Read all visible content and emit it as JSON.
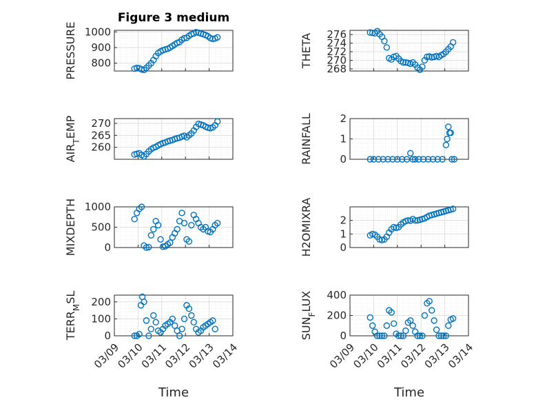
{
  "title": "Figure 3 medium",
  "xlabel": "Time",
  "x_tick_labels": [
    "03/09",
    "03/10",
    "03/11",
    "03/12",
    "03/13",
    "03/14"
  ],
  "marker_color": "#0072bd",
  "chart_data": [
    {
      "type": "scatter",
      "ylabel": "PRESSURE",
      "ylim": [
        750,
        1010
      ],
      "yticks": [
        800,
        900,
        1000
      ],
      "grid": true,
      "x": [
        0.85,
        0.95,
        1.05,
        1.15,
        1.25,
        1.35,
        1.45,
        1.55,
        1.65,
        1.75,
        1.85,
        1.95,
        2.05,
        2.15,
        2.25,
        2.35,
        2.45,
        2.55,
        2.65,
        2.75,
        2.85,
        2.95,
        3.05,
        3.15,
        3.25,
        3.35,
        3.45,
        3.55,
        3.65,
        3.75,
        3.85,
        3.95,
        4.05,
        4.15,
        4.25,
        4.35
      ],
      "y": [
        765,
        770,
        768,
        760,
        757,
        770,
        785,
        800,
        820,
        845,
        865,
        875,
        883,
        888,
        892,
        900,
        910,
        920,
        930,
        935,
        950,
        960,
        962,
        975,
        985,
        990,
        998,
        995,
        990,
        985,
        980,
        972,
        960,
        955,
        958,
        965
      ]
    },
    {
      "type": "scatter",
      "ylabel": "THETA",
      "ylim": [
        267.5,
        277
      ],
      "yticks": [
        268,
        270,
        272,
        274,
        276
      ],
      "grid": true,
      "x": [
        0.85,
        0.95,
        1.05,
        1.15,
        1.25,
        1.35,
        1.45,
        1.55,
        1.65,
        1.75,
        1.85,
        1.95,
        2.05,
        2.15,
        2.25,
        2.35,
        2.45,
        2.55,
        2.65,
        2.75,
        2.85,
        2.95,
        3.05,
        3.15,
        3.25,
        3.35,
        3.45,
        3.55,
        3.65,
        3.75,
        3.85,
        3.95,
        4.05,
        4.15,
        4.25,
        4.35
      ],
      "y": [
        276.5,
        276.4,
        276.3,
        276.8,
        276.1,
        275.5,
        274.5,
        273,
        270.5,
        270.2,
        270.8,
        271,
        270.4,
        269.8,
        269.5,
        269.5,
        269.4,
        269.2,
        269.5,
        269,
        268.3,
        267.8,
        268.5,
        270,
        270.8,
        270.9,
        270.7,
        270.8,
        271,
        270.8,
        271.2,
        271.5,
        272,
        272.6,
        273.2,
        274.2
      ]
    },
    {
      "type": "scatter",
      "ylabel": "AIR_TEMP",
      "ylim": [
        255,
        272
      ],
      "yticks": [
        260,
        265,
        270
      ],
      "grid": true,
      "x": [
        0.85,
        0.95,
        1.05,
        1.15,
        1.25,
        1.35,
        1.45,
        1.55,
        1.65,
        1.75,
        1.85,
        1.95,
        2.05,
        2.15,
        2.25,
        2.35,
        2.45,
        2.55,
        2.65,
        2.75,
        2.85,
        2.95,
        3.05,
        3.15,
        3.25,
        3.35,
        3.45,
        3.55,
        3.65,
        3.75,
        3.85,
        3.95,
        4.05,
        4.15,
        4.25,
        4.35
      ],
      "y": [
        257,
        257.3,
        257.5,
        256.8,
        256.2,
        257.2,
        258.3,
        259.2,
        259.8,
        260.2,
        260.8,
        261.3,
        261.8,
        262,
        262.5,
        262.8,
        263,
        263.5,
        263.8,
        264,
        264.5,
        264.8,
        264.2,
        265,
        265.8,
        267,
        268.5,
        269.8,
        269.5,
        269.2,
        268.6,
        268.2,
        268,
        268.3,
        269.2,
        270.8
      ]
    },
    {
      "type": "scatter",
      "ylabel": "RAINFALL",
      "ylim": [
        0,
        2
      ],
      "yticks": [
        0,
        1,
        2
      ],
      "grid": true,
      "x": [
        0.85,
        1.0,
        1.2,
        1.4,
        1.6,
        1.8,
        2.0,
        2.2,
        2.4,
        2.55,
        2.65,
        2.75,
        2.9,
        3.1,
        3.3,
        3.5,
        3.7,
        3.9,
        4.05,
        4.1,
        4.15,
        4.2,
        4.25,
        4.3,
        4.4
      ],
      "y": [
        0,
        0,
        0,
        0,
        0,
        0,
        0,
        0,
        0,
        0.3,
        0,
        0,
        0,
        0,
        0,
        0,
        0,
        0,
        0.7,
        1.0,
        1.6,
        1.3,
        1.3,
        0,
        0
      ]
    },
    {
      "type": "scatter",
      "ylabel": "MIXDEPTH",
      "ylim": [
        0,
        1000
      ],
      "yticks": [
        0,
        500,
        1000
      ],
      "grid": true,
      "x": [
        0.85,
        0.95,
        1.05,
        1.15,
        1.25,
        1.35,
        1.45,
        1.55,
        1.65,
        1.75,
        1.85,
        1.95,
        2.05,
        2.15,
        2.25,
        2.35,
        2.45,
        2.55,
        2.65,
        2.75,
        2.85,
        2.95,
        3.05,
        3.15,
        3.25,
        3.35,
        3.45,
        3.55,
        3.65,
        3.75,
        3.85,
        3.95,
        4.05,
        4.15,
        4.25,
        4.35
      ],
      "y": [
        700,
        850,
        950,
        1000,
        50,
        0,
        10,
        300,
        450,
        650,
        550,
        200,
        20,
        30,
        80,
        120,
        250,
        350,
        450,
        650,
        850,
        600,
        200,
        150,
        550,
        800,
        700,
        600,
        500,
        450,
        500,
        400,
        380,
        450,
        550,
        600
      ]
    },
    {
      "type": "scatter",
      "ylabel": "H2OMIXRA",
      "ylim": [
        0,
        3
      ],
      "yticks": [
        0,
        1,
        2
      ],
      "grid": true,
      "x": [
        0.85,
        0.95,
        1.05,
        1.15,
        1.25,
        1.35,
        1.45,
        1.55,
        1.65,
        1.75,
        1.85,
        1.95,
        2.05,
        2.15,
        2.25,
        2.35,
        2.45,
        2.55,
        2.65,
        2.75,
        2.85,
        2.95,
        3.05,
        3.15,
        3.25,
        3.35,
        3.45,
        3.55,
        3.65,
        3.75,
        3.85,
        3.95,
        4.05,
        4.15,
        4.25,
        4.35
      ],
      "y": [
        0.9,
        1.0,
        0.95,
        0.8,
        0.6,
        0.55,
        0.6,
        0.8,
        1.1,
        1.35,
        1.5,
        1.45,
        1.5,
        1.7,
        1.85,
        1.95,
        2.0,
        1.98,
        2.1,
        2.0,
        2.0,
        2.05,
        2.1,
        2.15,
        2.25,
        2.35,
        2.4,
        2.45,
        2.5,
        2.55,
        2.6,
        2.65,
        2.7,
        2.75,
        2.8,
        2.85
      ]
    },
    {
      "type": "scatter",
      "ylabel": "TERR_MSL",
      "ylim": [
        0,
        240
      ],
      "yticks": [
        0,
        100,
        200
      ],
      "grid": true,
      "x": [
        0.85,
        0.95,
        1.05,
        1.12,
        1.18,
        1.25,
        1.35,
        1.45,
        1.55,
        1.65,
        1.75,
        1.85,
        1.95,
        2.05,
        2.15,
        2.25,
        2.35,
        2.45,
        2.55,
        2.65,
        2.75,
        2.85,
        2.95,
        3.05,
        3.15,
        3.25,
        3.35,
        3.45,
        3.55,
        3.65,
        3.75,
        3.85,
        3.95,
        4.05,
        4.15,
        4.25
      ],
      "y": [
        0,
        0,
        10,
        180,
        230,
        200,
        90,
        0,
        40,
        120,
        80,
        30,
        20,
        40,
        60,
        70,
        80,
        100,
        60,
        30,
        0,
        40,
        100,
        180,
        160,
        120,
        80,
        40,
        20,
        30,
        50,
        60,
        70,
        80,
        90,
        40
      ]
    },
    {
      "type": "scatter",
      "ylabel": "SUN_FLUX",
      "ylim": [
        0,
        400
      ],
      "yticks": [
        0,
        200,
        400
      ],
      "grid": true,
      "x": [
        0.85,
        0.95,
        1.05,
        1.15,
        1.25,
        1.35,
        1.45,
        1.55,
        1.65,
        1.75,
        1.85,
        1.95,
        2.05,
        2.15,
        2.25,
        2.35,
        2.45,
        2.55,
        2.65,
        2.75,
        2.85,
        2.95,
        3.05,
        3.15,
        3.25,
        3.35,
        3.45,
        3.55,
        3.65,
        3.75,
        3.85,
        3.95,
        4.05,
        4.15,
        4.25,
        4.35
      ],
      "y": [
        180,
        100,
        40,
        0,
        0,
        0,
        0,
        100,
        250,
        230,
        120,
        20,
        0,
        0,
        0,
        50,
        130,
        150,
        100,
        40,
        0,
        0,
        0,
        200,
        320,
        340,
        250,
        150,
        60,
        0,
        0,
        0,
        0,
        100,
        160,
        170
      ]
    }
  ]
}
